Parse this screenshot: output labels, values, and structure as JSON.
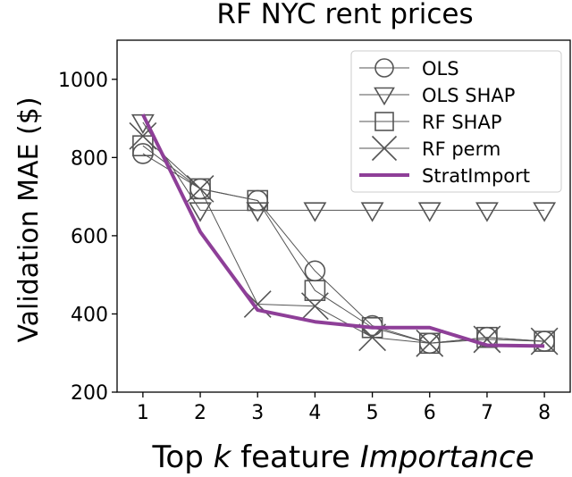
{
  "chart_data": {
    "type": "line",
    "title": "RF NYC rent prices",
    "xlabel_prefix": "Top ",
    "xlabel_k": "k",
    "xlabel_mid": " feature ",
    "xlabel_emph": "Importance",
    "ylabel": "Validation MAE ($)",
    "x": [
      1,
      2,
      3,
      4,
      5,
      6,
      7,
      8
    ],
    "xlim": [
      0.55,
      8.45
    ],
    "ylim": [
      200,
      1100
    ],
    "yticks": [
      200,
      400,
      600,
      800,
      1000
    ],
    "grid": false,
    "legend_position": "upper-right",
    "series": [
      {
        "name": "OLS",
        "marker": "circle",
        "color": "#555555",
        "values": [
          810,
          720,
          690,
          510,
          370,
          325,
          340,
          330
        ]
      },
      {
        "name": "OLS SHAP",
        "marker": "triangle-down",
        "color": "#555555",
        "values": [
          890,
          665,
          665,
          665,
          665,
          665,
          665,
          665
        ]
      },
      {
        "name": "RF SHAP",
        "marker": "square",
        "color": "#555555",
        "values": [
          830,
          720,
          690,
          460,
          365,
          325,
          340,
          330
        ]
      },
      {
        "name": "RF perm",
        "marker": "x",
        "color": "#555555",
        "values": [
          855,
          720,
          425,
          420,
          340,
          325,
          335,
          330
        ]
      },
      {
        "name": "StratImport",
        "marker": "none",
        "color": "#8e3f98",
        "values": [
          910,
          610,
          410,
          380,
          365,
          365,
          320,
          318
        ]
      }
    ]
  }
}
